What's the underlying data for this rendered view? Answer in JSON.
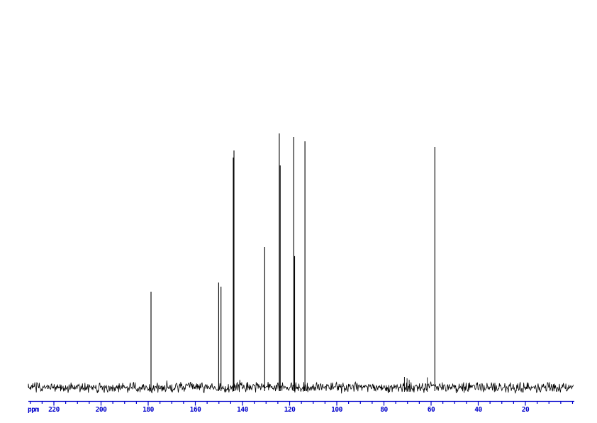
{
  "figure": {
    "kind": "13C NMR spectrum",
    "background_color": "#ffffff",
    "trace_color": "#000000",
    "axis_color": "#0000cc"
  },
  "axis": {
    "unit_label": "ppm",
    "tick_labels": [
      "220",
      "200",
      "180",
      "160",
      "140",
      "120",
      "100",
      "80",
      "60",
      "40",
      "20"
    ],
    "major_tick_ppm": [
      220,
      200,
      180,
      160,
      140,
      120,
      100,
      80,
      60,
      40,
      20
    ],
    "minor_tick_step_ppm": 5,
    "range_ppm": [
      230.8,
      -0.8
    ]
  },
  "chart_data": {
    "type": "line",
    "title": "",
    "xlabel": "ppm",
    "ylabel": "",
    "x_axis": {
      "min": -0.8,
      "max": 230.8,
      "inverted": true,
      "major_ticks": [
        220,
        200,
        180,
        160,
        140,
        120,
        100,
        80,
        60,
        40,
        20
      ],
      "minor_tick_step": 5
    },
    "grid": false,
    "legend": false,
    "baseline_intensity": 0.0,
    "noise_amplitude_rel": 0.02,
    "peaks": [
      {
        "ppm": 178.8,
        "intensity": 0.377
      },
      {
        "ppm": 150.1,
        "intensity": 0.413
      },
      {
        "ppm": 149.1,
        "intensity": 0.397
      },
      {
        "ppm": 143.9,
        "intensity": 0.905
      },
      {
        "ppm": 143.6,
        "intensity": 0.933
      },
      {
        "ppm": 130.6,
        "intensity": 0.553
      },
      {
        "ppm": 124.4,
        "intensity": 1.0
      },
      {
        "ppm": 124.0,
        "intensity": 0.874
      },
      {
        "ppm": 118.3,
        "intensity": 0.986
      },
      {
        "ppm": 117.9,
        "intensity": 0.517
      },
      {
        "ppm": 113.5,
        "intensity": 0.969
      },
      {
        "ppm": 58.4,
        "intensity": 0.947
      }
    ],
    "minor_noise_spikes": [
      {
        "ppm": 71.3,
        "intensity": 0.042
      },
      {
        "ppm": 70.2,
        "intensity": 0.036
      },
      {
        "ppm": 69.3,
        "intensity": 0.03
      },
      {
        "ppm": 61.6,
        "intensity": 0.04
      }
    ]
  }
}
